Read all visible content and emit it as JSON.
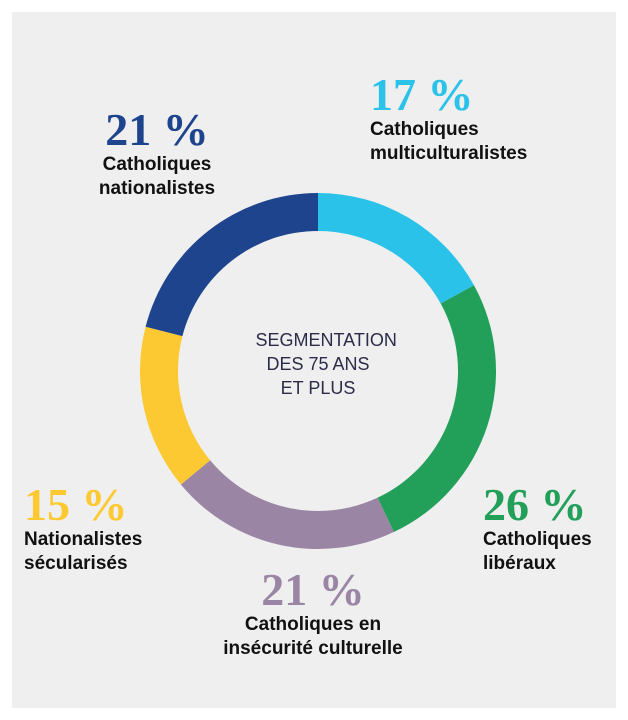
{
  "chart_data": {
    "type": "pie",
    "donut": true,
    "center_label": "SEGMENTATION DES 75 ANS ET PLUS",
    "categories": [
      "Catholiques multiculturalistes",
      "Catholiques libéraux",
      "Catholiques en insécurité culturelle",
      "Nationalistes sécularisés",
      "Catholiques nationalistes"
    ],
    "values": [
      17,
      26,
      21,
      15,
      21
    ],
    "value_labels": [
      "17 %",
      "26 %",
      "21 %",
      "15 %",
      "21 %"
    ],
    "colors": [
      "#2bc2ea",
      "#22a05a",
      "#9a86a4",
      "#fdc932",
      "#1d448d"
    ]
  }
}
